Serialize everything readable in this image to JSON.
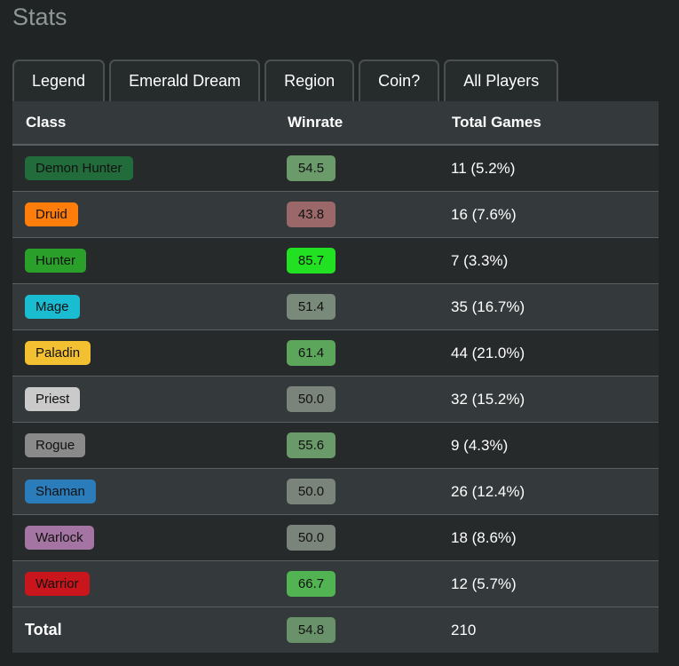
{
  "title": "Stats",
  "tabs": [
    "Legend",
    "Emerald Dream",
    "Region",
    "Coin?",
    "All Players"
  ],
  "columns": [
    "Class",
    "Winrate",
    "Total Games"
  ],
  "rows": [
    {
      "class": "Demon Hunter",
      "class_color": "#226b3a",
      "winrate": "54.5",
      "winrate_color": "#6b9a6b",
      "games": "11 (5.2%)"
    },
    {
      "class": "Druid",
      "class_color": "#ff7d0a",
      "winrate": "43.8",
      "winrate_color": "#9a6868",
      "games": "16 (7.6%)"
    },
    {
      "class": "Hunter",
      "class_color": "#2aa02a",
      "winrate": "85.7",
      "winrate_color": "#22e022",
      "games": "7 (3.3%)"
    },
    {
      "class": "Mage",
      "class_color": "#1abcd2",
      "winrate": "51.4",
      "winrate_color": "#7a8a7a",
      "games": "35 (16.7%)"
    },
    {
      "class": "Paladin",
      "class_color": "#f2c030",
      "winrate": "61.4",
      "winrate_color": "#5ca65c",
      "games": "44 (21.0%)"
    },
    {
      "class": "Priest",
      "class_color": "#cacaca",
      "winrate": "50.0",
      "winrate_color": "#7b847b",
      "games": "32 (15.2%)"
    },
    {
      "class": "Rogue",
      "class_color": "#8a8a8a",
      "winrate": "55.6",
      "winrate_color": "#6a9a6a",
      "games": "9 (4.3%)"
    },
    {
      "class": "Shaman",
      "class_color": "#2a7cba",
      "winrate": "50.0",
      "winrate_color": "#7b847b",
      "games": "26 (12.4%)"
    },
    {
      "class": "Warlock",
      "class_color": "#a474a2",
      "winrate": "50.0",
      "winrate_color": "#7b847b",
      "games": "18 (8.6%)"
    },
    {
      "class": "Warrior",
      "class_color": "#c8161c",
      "winrate": "66.7",
      "winrate_color": "#52b352",
      "games": "12 (5.7%)"
    }
  ],
  "total": {
    "label": "Total",
    "winrate": "54.8",
    "winrate_color": "#6a926a",
    "games": "210"
  }
}
